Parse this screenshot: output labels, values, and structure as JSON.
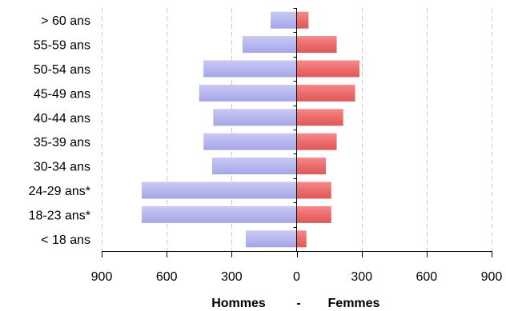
{
  "chart_data": {
    "type": "bar",
    "orientation": "horizontal",
    "layout": "population-pyramid",
    "categories": [
      "> 60 ans",
      "55-59 ans",
      "50-54 ans",
      "45-49 ans",
      "40-44 ans",
      "35-39 ans",
      "30-34 ans",
      "24-29 ans*",
      "18-23 ans*",
      "< 18 ans"
    ],
    "series": [
      {
        "name": "Hommes",
        "side": "left",
        "color": "#b3b3ee",
        "values": [
          120,
          250,
          430,
          450,
          385,
          430,
          390,
          715,
          715,
          235
        ]
      },
      {
        "name": "Femmes",
        "side": "right",
        "color": "#ee6e6e",
        "values": [
          55,
          185,
          290,
          270,
          215,
          185,
          135,
          160,
          160,
          45
        ]
      }
    ],
    "xlim": [
      -900,
      900
    ],
    "xticks": [
      -900,
      -600,
      -300,
      0,
      300,
      600,
      900
    ],
    "xtick_labels": [
      "900",
      "600",
      "300",
      "0",
      "300",
      "600",
      "900"
    ],
    "xlabel": {
      "left": "Hommes",
      "separator": "-",
      "right": "Femmes"
    },
    "grid": "vertical dashed",
    "legend": "none"
  }
}
